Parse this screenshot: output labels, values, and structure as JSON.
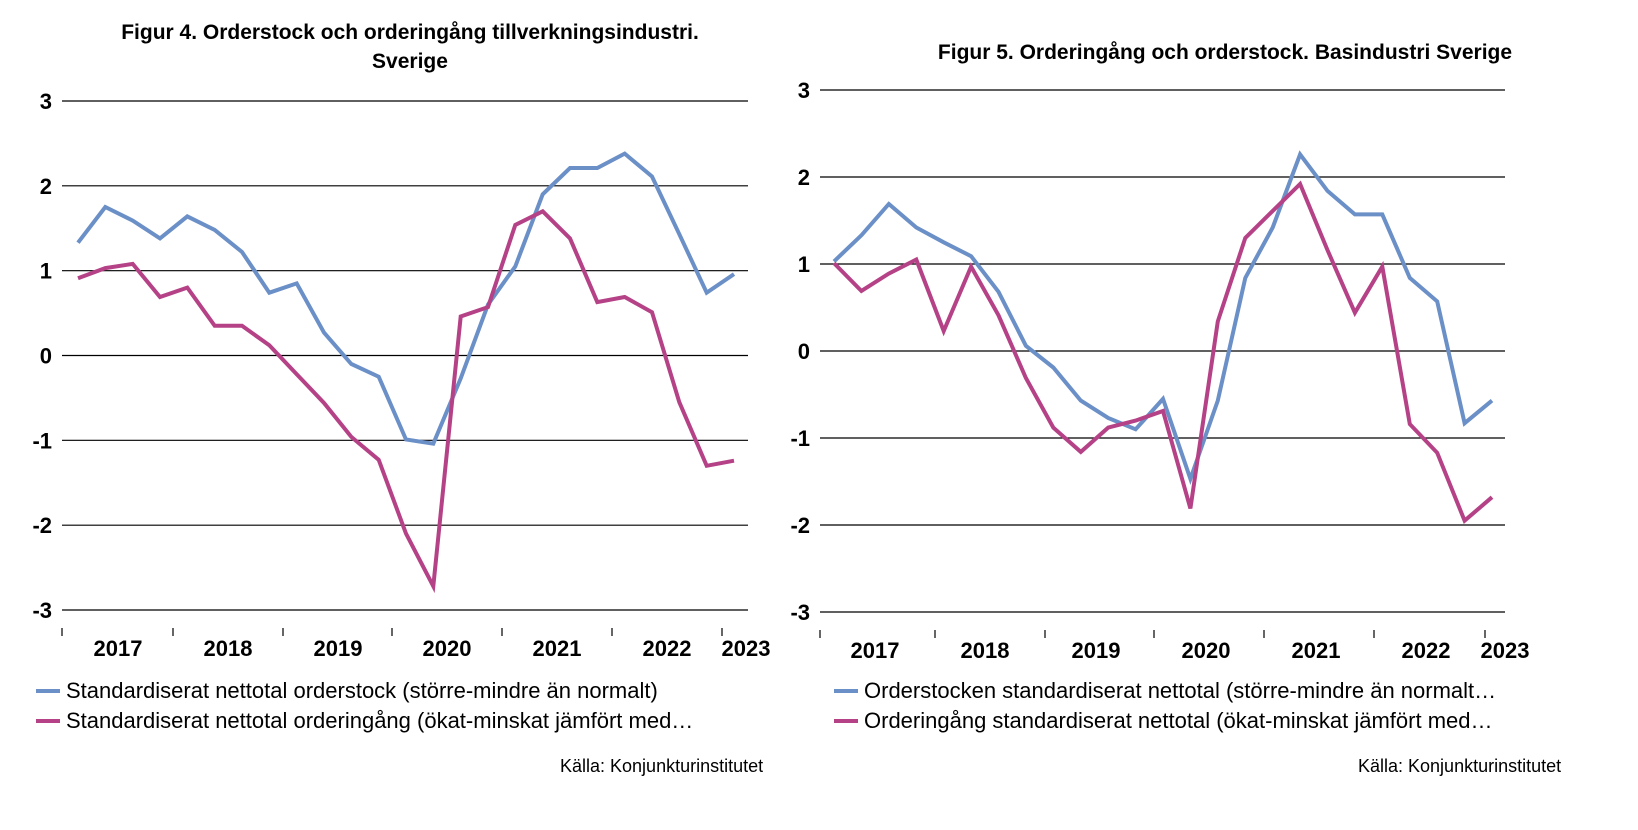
{
  "colors": {
    "series1": "#6b8fc7",
    "series2": "#b54286",
    "grid": "#000000"
  },
  "chart_data": [
    {
      "type": "line",
      "title": "Figur 4. Orderstock och orderingång tillverkningsindustri. Sverige",
      "title_lines": [
        "Figur 4. Orderstock och orderingång tillverkningsindustri.",
        "Sverige"
      ],
      "year_labels": [
        "2017",
        "2018",
        "2019",
        "2020",
        "2021",
        "2022",
        "2023"
      ],
      "yticks": [
        "3",
        "2",
        "1",
        "0",
        "-1",
        "-2",
        "-3"
      ],
      "ylim": [
        -3,
        3
      ],
      "grid": true,
      "legend_position": "bottom",
      "series": [
        {
          "name": "Standardiserat nettotal orderstock (större-mindre än normalt)",
          "values": [
            1.33,
            1.75,
            1.59,
            1.38,
            1.64,
            1.48,
            1.22,
            0.74,
            0.85,
            0.27,
            -0.1,
            -0.25,
            -0.99,
            -1.04,
            -0.27,
            0.6,
            1.05,
            1.9,
            2.21,
            2.21,
            2.38,
            2.11,
            1.43,
            0.74,
            0.96
          ]
        },
        {
          "name": "Standardiserat nettotal orderingång (ökat-minskat jämfört med…",
          "values": [
            0.91,
            1.03,
            1.08,
            0.69,
            0.8,
            0.35,
            0.35,
            0.12,
            -0.22,
            -0.56,
            -0.96,
            -1.23,
            -2.1,
            -2.72,
            0.46,
            0.57,
            1.54,
            1.7,
            1.38,
            0.63,
            0.69,
            0.51,
            -0.55,
            -1.3,
            -1.24
          ]
        }
      ]
    },
    {
      "type": "line",
      "title": "Figur 5. Orderingång och orderstock. Basindustri Sverige",
      "title_lines": [
        "Figur 5. Orderingång och orderstock. Basindustri Sverige"
      ],
      "year_labels": [
        "2017",
        "2018",
        "2019",
        "2020",
        "2021",
        "2022",
        "2023"
      ],
      "yticks": [
        "3",
        "2",
        "1",
        "0",
        "-1",
        "-2",
        "-3"
      ],
      "ylim": [
        -3,
        3
      ],
      "grid": true,
      "legend_position": "bottom",
      "series": [
        {
          "name": "Orderstocken standardiserat nettotal (större-mindre än normalt…",
          "values": [
            1.03,
            1.33,
            1.69,
            1.42,
            1.25,
            1.09,
            0.68,
            0.06,
            -0.19,
            -0.57,
            -0.77,
            -0.9,
            -0.55,
            -1.47,
            -0.57,
            0.84,
            1.42,
            2.26,
            1.84,
            1.57,
            1.57,
            0.84,
            0.57,
            -0.83,
            -0.57
          ]
        },
        {
          "name": "Orderingång standardiserat nettotal (ökat-minskat jämfört med…",
          "values": [
            1.01,
            0.69,
            0.89,
            1.05,
            0.23,
            0.97,
            0.41,
            -0.31,
            -0.88,
            -1.16,
            -0.88,
            -0.8,
            -0.69,
            -1.81,
            0.34,
            1.3,
            1.61,
            1.92,
            1.16,
            0.44,
            0.97,
            -0.84,
            -1.17,
            -1.95,
            -1.68
          ]
        }
      ]
    }
  ],
  "source_text": "Källa: Konjunkturinstitutet"
}
